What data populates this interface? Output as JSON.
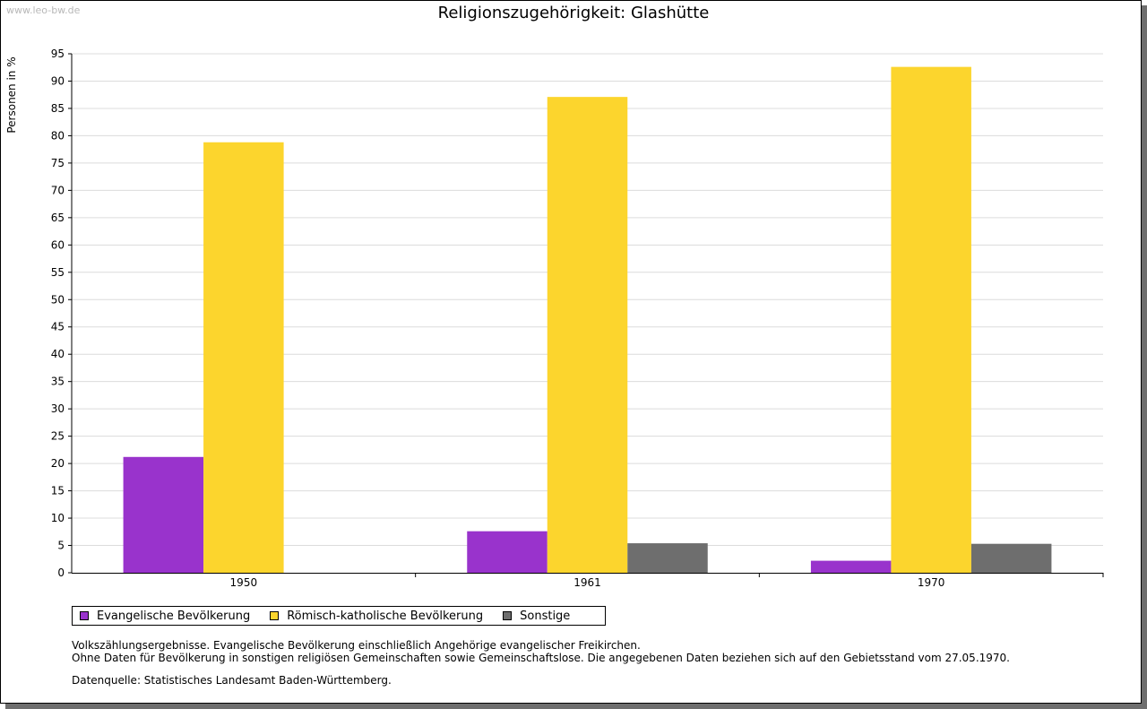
{
  "watermark": "www.leo-bw.de",
  "chart_data": {
    "type": "bar",
    "title": "Religionszugehörigkeit: Glashütte",
    "xlabel": "",
    "ylabel": "Personen in %",
    "categories": [
      "1950",
      "1961",
      "1970"
    ],
    "ylim": [
      0,
      95
    ],
    "yticks": [
      0,
      5,
      10,
      15,
      20,
      25,
      30,
      35,
      40,
      45,
      50,
      55,
      60,
      65,
      70,
      75,
      80,
      85,
      90,
      95
    ],
    "grid": true,
    "legend_position": "bottom-left",
    "series": [
      {
        "name": "Evangelische Bevölkerung",
        "color": "#9933cc",
        "values": [
          21.2,
          7.6,
          2.2
        ]
      },
      {
        "name": "Römisch-katholische Bevölkerung",
        "color": "#fcd52d",
        "values": [
          78.8,
          87.1,
          92.6
        ]
      },
      {
        "name": "Sonstige",
        "color": "#6e6e6e",
        "values": [
          null,
          5.4,
          5.3
        ]
      }
    ]
  },
  "notes": {
    "line1": "Volkszählungsergebnisse. Evangelische Bevölkerung einschließlich Angehörige evangelischer Freikirchen.",
    "line2": "Ohne Daten für Bevölkerung in sonstigen religiösen Gemeinschaften sowie Gemeinschaftslose. Die angegebenen Daten beziehen sich auf den Gebietsstand vom 27.05.1970.",
    "source": "Datenquelle: Statistisches Landesamt Baden-Württemberg."
  }
}
